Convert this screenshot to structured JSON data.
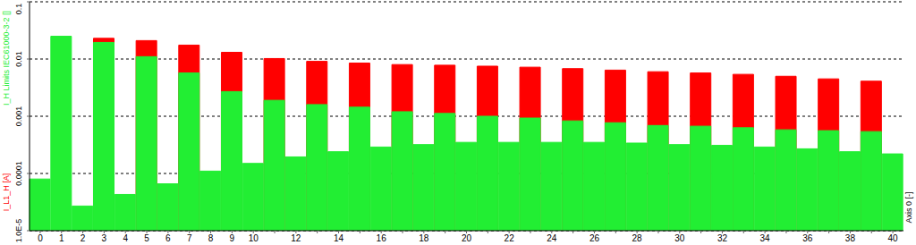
{
  "chart_data": {
    "type": "bar",
    "categories": [
      "0",
      "1",
      "2",
      "3",
      "4",
      "5",
      "6",
      "7",
      "8",
      "9",
      "10",
      null,
      "12",
      null,
      "14",
      null,
      "16",
      null,
      "18",
      null,
      "20",
      null,
      "22",
      null,
      "24",
      null,
      "26",
      null,
      "28",
      null,
      "30",
      null,
      "32",
      null,
      "34",
      null,
      "36",
      null,
      "38",
      null,
      "40"
    ],
    "x_label": "Axis 0 [-]",
    "series": [
      {
        "name": "I_L1_H [A]",
        "color": "#ff0000",
        "values": [
          null,
          null,
          null,
          0.023,
          null,
          0.021,
          null,
          0.0175,
          null,
          0.0131,
          null,
          0.0102,
          null,
          0.0091,
          null,
          0.0085,
          null,
          0.008,
          null,
          0.0078,
          null,
          0.0075,
          null,
          0.0072,
          null,
          0.0068,
          null,
          0.0064,
          null,
          0.006,
          null,
          0.0057,
          null,
          0.0054,
          null,
          0.005,
          null,
          0.0045,
          null,
          0.0041,
          null
        ]
      },
      {
        "name": "I_H Limits IEC61000-3-2 []",
        "color": "#22ee33",
        "values": [
          8e-05,
          0.025,
          2.7e-05,
          0.0195,
          4.3e-05,
          0.011,
          6.6e-05,
          0.0057,
          0.00011,
          0.0027,
          0.00015,
          0.0019,
          0.000195,
          0.0016,
          0.00024,
          0.00144,
          0.00029,
          0.0012,
          0.00032,
          0.00112,
          0.00035,
          0.001,
          0.00035,
          0.00093,
          0.00035,
          0.00083,
          0.00035,
          0.00077,
          0.00034,
          0.00069,
          0.00032,
          0.00067,
          0.00031,
          0.00063,
          0.00029,
          0.00058,
          0.00027,
          0.00056,
          0.00024,
          0.00054,
          0.00022
        ]
      }
    ],
    "ylim": [
      1e-05,
      0.1
    ],
    "yticks": [
      {
        "value": 1e-05,
        "label": "1.0E-5"
      },
      0.0001,
      0.001,
      0.01,
      0.1
    ],
    "log": "y",
    "grid": true
  }
}
